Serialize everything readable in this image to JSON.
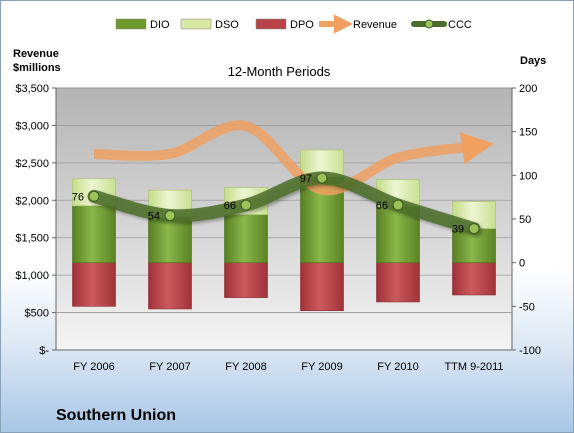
{
  "company": "Southern Union",
  "chart_data": {
    "type": "bar",
    "title": "12-Month Periods",
    "left_axis_label_line1": "Revenue",
    "left_axis_label_line2": "$millions",
    "right_axis_label": "Days",
    "categories": [
      "FY 2006",
      "FY 2007",
      "FY 2008",
      "FY 2009",
      "FY 2010",
      "TTM 9-2011"
    ],
    "left_ylim": [
      0,
      3500
    ],
    "left_ticks": [
      "$-",
      "$500",
      "$1,000",
      "$1,500",
      "$2,000",
      "$2,500",
      "$3,000",
      "$3,500"
    ],
    "right_ylim": [
      -100,
      200
    ],
    "right_ticks": [
      "-100",
      "-50",
      "0",
      "50",
      "100",
      "150",
      "200"
    ],
    "grid": true,
    "legend_position": "top",
    "legend": [
      {
        "name": "DIO",
        "color": "#6f9a2e"
      },
      {
        "name": "DSO",
        "color": "#d7e8a5"
      },
      {
        "name": "DPO",
        "color": "#b8444a"
      },
      {
        "name": "Revenue",
        "color": "#f0a060"
      },
      {
        "name": "CCC",
        "color": "#4c6e2a"
      }
    ],
    "series": [
      {
        "name": "DIO",
        "axis": "right",
        "values": [
          65,
          52,
          55,
          98,
          64,
          39
        ]
      },
      {
        "name": "DSO",
        "axis": "right",
        "values": [
          31,
          31,
          31,
          31,
          31,
          31
        ]
      },
      {
        "name": "DPO",
        "axis": "right",
        "values": [
          -50,
          -53,
          -40,
          -55,
          -45,
          -37
        ]
      },
      {
        "name": "Revenue",
        "axis": "left",
        "values": [
          2620,
          2620,
          2990,
          2140,
          2570,
          2720
        ]
      },
      {
        "name": "CCC",
        "axis": "right",
        "values": [
          76,
          54,
          66,
          97,
          66,
          39
        ]
      }
    ],
    "ccc_labels": [
      "76",
      "54",
      "66",
      "97",
      "66",
      "39"
    ]
  }
}
